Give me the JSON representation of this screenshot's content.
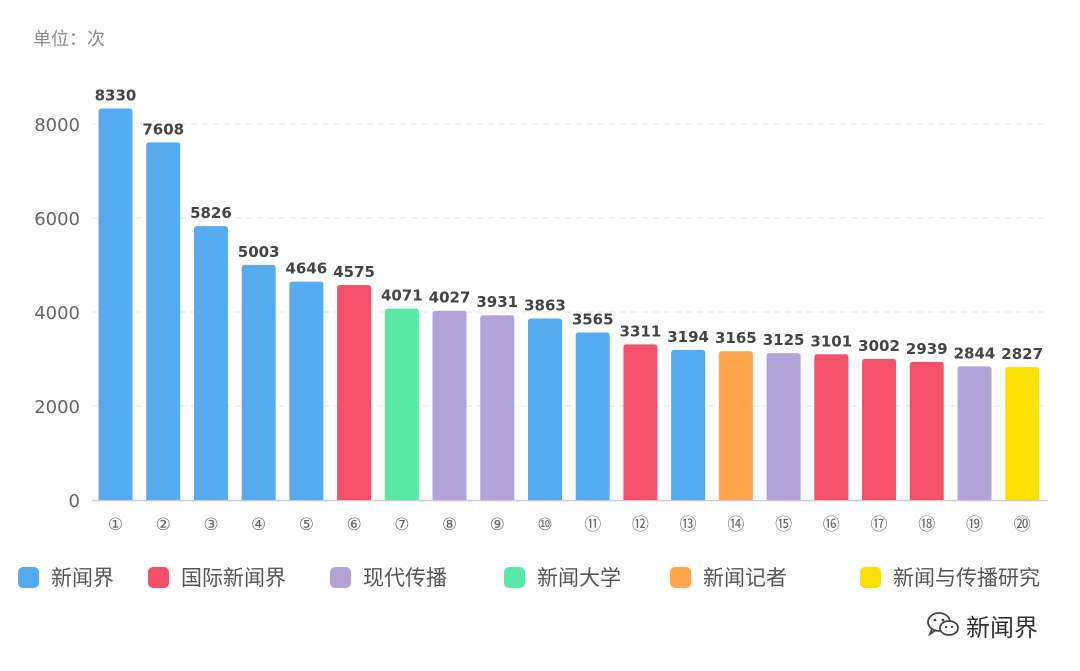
{
  "unit_label": "单位：次",
  "legend": [
    {
      "label": "新闻界",
      "color": "#56abf0"
    },
    {
      "label": "国际新闻界",
      "color": "#f5506a"
    },
    {
      "label": "现代传播",
      "color": "#b3a3d9"
    },
    {
      "label": "新闻大学",
      "color": "#5ae8a8"
    },
    {
      "label": "新闻记者",
      "color": "#ffa64d"
    },
    {
      "label": "新闻与传播研究",
      "color": "#fae100"
    }
  ],
  "watermark": {
    "text": "新闻界",
    "icon": "wechat-icon"
  },
  "chart_data": {
    "type": "bar",
    "categories": [
      "①",
      "②",
      "③",
      "④",
      "⑤",
      "⑥",
      "⑦",
      "⑧",
      "⑨",
      "⑩",
      "⑪",
      "⑫",
      "⑬",
      "⑭",
      "⑮",
      "⑯",
      "⑰",
      "⑱",
      "⑲",
      "⑳"
    ],
    "values": [
      8330,
      7608,
      5826,
      5003,
      4646,
      4575,
      4071,
      4027,
      3931,
      3863,
      3565,
      3311,
      3194,
      3165,
      3125,
      3101,
      3002,
      2939,
      2844,
      2827
    ],
    "bar_journal": [
      "新闻界",
      "新闻界",
      "新闻界",
      "新闻界",
      "新闻界",
      "国际新闻界",
      "新闻大学",
      "现代传播",
      "现代传播",
      "新闻界",
      "新闻界",
      "国际新闻界",
      "新闻界",
      "新闻记者",
      "现代传播",
      "国际新闻界",
      "国际新闻界",
      "国际新闻界",
      "现代传播",
      "新闻与传播研究"
    ],
    "ylim": [
      0,
      8000
    ],
    "yticks": [
      0,
      2000,
      4000,
      6000,
      8000
    ],
    "grid": true,
    "legend_position": "bottom"
  }
}
